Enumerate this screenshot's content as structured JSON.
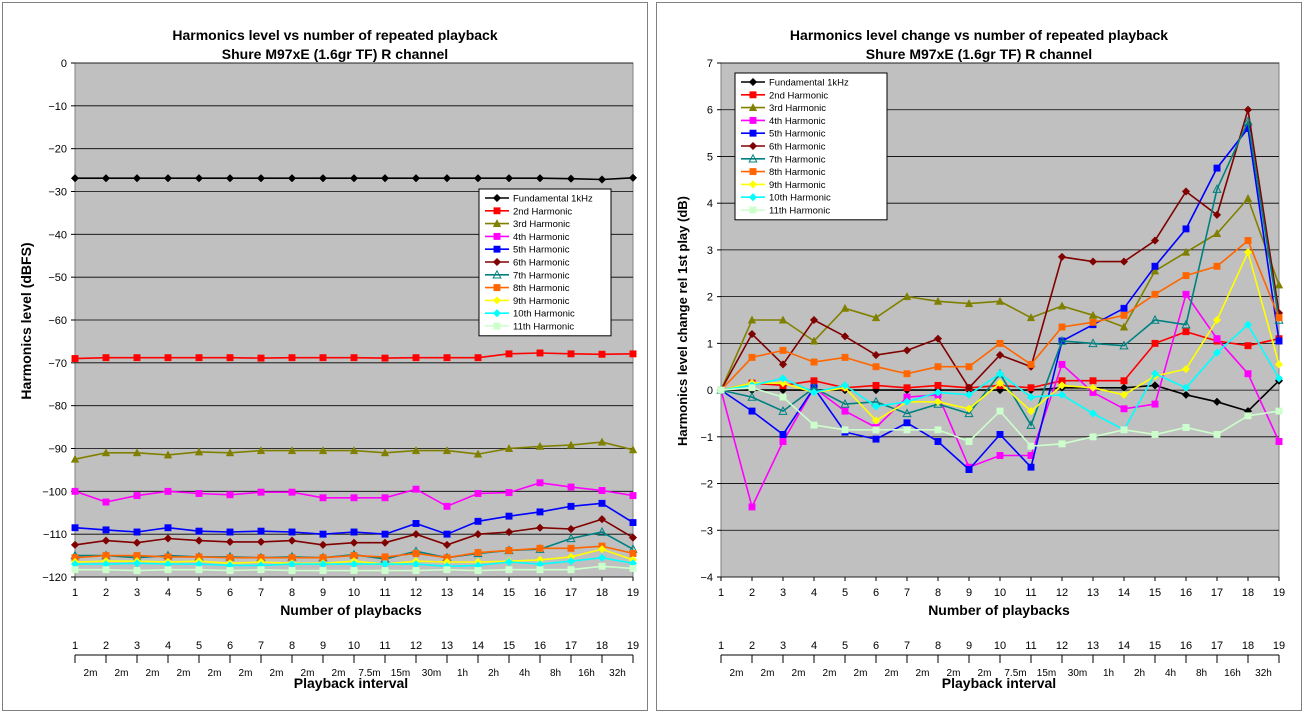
{
  "legend_labels": [
    "Fundamental 1kHz",
    "2nd Harmonic",
    "3rd Harmonic",
    "4th Harmonic",
    "5th Harmonic",
    "6th Harmonic",
    "7th Harmonic",
    "8th Harmonic",
    "9th Harmonic",
    "10th Harmonic",
    "11th Harmonic"
  ],
  "series_colors": [
    "#000000",
    "#ff0000",
    "#808000",
    "#ff00ff",
    "#0000ff",
    "#800000",
    "#008080",
    "#ff6600",
    "#ffff00",
    "#00ffff",
    "#ccffcc"
  ],
  "series_markers": [
    "diamond",
    "square",
    "triangle",
    "square",
    "square",
    "diamond",
    "triangle-open",
    "square",
    "diamond",
    "diamond",
    "square"
  ],
  "secondary_axis": {
    "title": "Playback interval",
    "labels": [
      "2m",
      "2m",
      "2m",
      "2m",
      "2m",
      "2m",
      "2m",
      "2m",
      "2m",
      "7.5m",
      "15m",
      "30m",
      "1h",
      "2h",
      "4h",
      "8h",
      "16h",
      "32h"
    ]
  },
  "chart_data": [
    {
      "type": "line",
      "title": "Harmonics level vs number of repeated playback",
      "subtitle": "Shure M97xE (1.6gr TF) R channel",
      "xlabel": "Number of  playbacks",
      "ylabel": "Harmonics level (dBFS)",
      "ylim": [
        -120,
        0
      ],
      "yticks": [
        0,
        -10,
        -20,
        -30,
        -40,
        -50,
        -60,
        -70,
        -80,
        -90,
        -100,
        -110,
        -120
      ],
      "x": [
        1,
        2,
        3,
        4,
        5,
        6,
        7,
        8,
        9,
        10,
        11,
        12,
        13,
        14,
        15,
        16,
        17,
        18,
        19
      ],
      "grid": true,
      "legend_position": "right",
      "series": [
        {
          "name": "Fundamental 1kHz",
          "values": [
            -26.9,
            -26.9,
            -26.9,
            -26.9,
            -26.9,
            -26.9,
            -26.9,
            -26.9,
            -26.9,
            -26.9,
            -26.9,
            -26.9,
            -26.9,
            -26.9,
            -26.9,
            -26.9,
            -27.0,
            -27.2,
            -26.8
          ]
        },
        {
          "name": "2nd Harmonic",
          "values": [
            -69.0,
            -68.8,
            -68.8,
            -68.8,
            -68.8,
            -68.8,
            -68.9,
            -68.8,
            -68.8,
            -68.8,
            -68.9,
            -68.8,
            -68.8,
            -68.8,
            -67.9,
            -67.7,
            -67.9,
            -68.0,
            -67.9
          ]
        },
        {
          "name": "3rd Harmonic",
          "values": [
            -92.5,
            -91.0,
            -91.0,
            -91.5,
            -90.8,
            -91.0,
            -90.5,
            -90.5,
            -90.5,
            -90.5,
            -91.0,
            -90.5,
            -90.5,
            -91.3,
            -90.0,
            -89.5,
            -89.2,
            -88.5,
            -90.3
          ]
        },
        {
          "name": "4th Harmonic",
          "values": [
            -100.0,
            -102.5,
            -101.0,
            -100.0,
            -100.5,
            -100.8,
            -100.2,
            -100.2,
            -101.5,
            -101.5,
            -101.5,
            -99.5,
            -103.5,
            -100.5,
            -100.3,
            -98.0,
            -99.0,
            -99.8,
            -101.0
          ]
        },
        {
          "name": "5th Harmonic",
          "values": [
            -108.5,
            -109.0,
            -109.5,
            -108.5,
            -109.3,
            -109.5,
            -109.3,
            -109.5,
            -110.0,
            -109.5,
            -110.0,
            -107.5,
            -110.0,
            -107.0,
            -105.8,
            -104.8,
            -103.5,
            -102.8,
            -107.3
          ]
        },
        {
          "name": "6th Harmonic",
          "values": [
            -112.5,
            -111.5,
            -112.0,
            -111.0,
            -111.5,
            -111.8,
            -111.8,
            -111.5,
            -112.5,
            -112.0,
            -112.0,
            -110.0,
            -112.5,
            -110.0,
            -109.5,
            -108.5,
            -108.8,
            -106.5,
            -110.8
          ]
        },
        {
          "name": "7th Harmonic",
          "values": [
            -115.0,
            -115.0,
            -115.5,
            -115.0,
            -115.3,
            -115.3,
            -115.5,
            -115.3,
            -115.5,
            -114.8,
            -115.8,
            -114.0,
            -115.5,
            -114.5,
            -113.8,
            -113.5,
            -111.0,
            -109.5,
            -113.5
          ]
        },
        {
          "name": "8th Harmonic",
          "values": [
            -115.5,
            -115.0,
            -115.0,
            -115.3,
            -115.3,
            -115.5,
            -115.5,
            -115.5,
            -115.5,
            -115.0,
            -115.3,
            -114.5,
            -115.5,
            -114.3,
            -113.8,
            -113.3,
            -113.3,
            -112.8,
            -114.5
          ]
        },
        {
          "name": "9th Harmonic",
          "values": [
            -116.5,
            -116.3,
            -116.3,
            -116.5,
            -116.3,
            -116.8,
            -116.5,
            -116.8,
            -116.8,
            -116.3,
            -117.0,
            -116.3,
            -116.5,
            -116.5,
            -116.3,
            -116.0,
            -115.3,
            -113.5,
            -116.0
          ]
        },
        {
          "name": "10th Harmonic",
          "values": [
            -117.0,
            -117.0,
            -116.8,
            -117.0,
            -117.0,
            -117.3,
            -117.3,
            -117.0,
            -117.0,
            -117.0,
            -117.0,
            -117.0,
            -117.5,
            -117.3,
            -116.5,
            -117.0,
            -116.3,
            -115.5,
            -116.8
          ]
        },
        {
          "name": "11th Harmonic",
          "values": [
            -118.3,
            -118.3,
            -118.5,
            -118.3,
            -118.3,
            -118.5,
            -118.3,
            -118.5,
            -118.5,
            -118.5,
            -118.5,
            -118.5,
            -118.3,
            -118.5,
            -118.3,
            -118.3,
            -118.3,
            -117.5,
            -118.0
          ]
        }
      ]
    },
    {
      "type": "line",
      "title": "Harmonics level change vs number of repeated playback",
      "subtitle": "Shure M97xE (1.6gr TF) R channel",
      "xlabel": "Number of playbacks",
      "ylabel": "Harmonics level change rel 1st play (dB)",
      "ylim": [
        -4,
        7
      ],
      "yticks": [
        7,
        6,
        5,
        4,
        3,
        2,
        1,
        0,
        -1,
        -2,
        -3,
        -4
      ],
      "x": [
        1,
        2,
        3,
        4,
        5,
        6,
        7,
        8,
        9,
        10,
        11,
        12,
        13,
        14,
        15,
        16,
        17,
        18,
        19
      ],
      "grid": true,
      "legend_position": "top-left",
      "series": [
        {
          "name": "Fundamental 1kHz",
          "values": [
            0,
            0,
            0,
            0,
            0,
            0,
            0,
            0,
            0,
            0,
            0,
            0.05,
            0.05,
            0.05,
            0.1,
            -0.1,
            -0.25,
            -0.45,
            0.2
          ]
        },
        {
          "name": "2nd Harmonic",
          "values": [
            0,
            0.15,
            0.1,
            0.2,
            0.05,
            0.1,
            0.05,
            0.1,
            0.05,
            0.1,
            0.05,
            0.2,
            0.2,
            0.2,
            1.0,
            1.25,
            1.05,
            0.95,
            1.1
          ]
        },
        {
          "name": "3rd Harmonic",
          "values": [
            0,
            1.5,
            1.5,
            1.05,
            1.75,
            1.55,
            2.0,
            1.9,
            1.85,
            1.9,
            1.55,
            1.8,
            1.6,
            1.35,
            2.55,
            2.95,
            3.35,
            4.1,
            2.25
          ]
        },
        {
          "name": "4th Harmonic",
          "values": [
            0,
            -2.5,
            -1.1,
            0.05,
            -0.45,
            -0.8,
            -0.15,
            -0.1,
            -1.65,
            -1.4,
            -1.4,
            0.55,
            -0.05,
            -0.4,
            -0.3,
            2.05,
            1.1,
            0.35,
            -1.1
          ]
        },
        {
          "name": "5th Harmonic",
          "values": [
            0,
            -0.45,
            -0.95,
            0.05,
            -0.9,
            -1.05,
            -0.7,
            -1.1,
            -1.7,
            -0.95,
            -1.65,
            1.05,
            1.4,
            1.75,
            2.65,
            3.45,
            4.75,
            5.6,
            1.05
          ]
        },
        {
          "name": "6th Harmonic",
          "values": [
            0,
            1.2,
            0.55,
            1.5,
            1.15,
            0.75,
            0.85,
            1.1,
            0.05,
            0.75,
            0.5,
            2.85,
            2.75,
            2.75,
            3.2,
            4.25,
            3.75,
            6.0,
            1.65
          ]
        },
        {
          "name": "7th Harmonic",
          "values": [
            0,
            -0.15,
            -0.45,
            0.05,
            -0.3,
            -0.25,
            -0.5,
            -0.3,
            -0.5,
            0.35,
            -0.75,
            1.05,
            1.0,
            0.95,
            1.5,
            1.4,
            4.3,
            5.75,
            1.5
          ]
        },
        {
          "name": "8th Harmonic",
          "values": [
            0,
            0.7,
            0.85,
            0.6,
            0.7,
            0.5,
            0.35,
            0.5,
            0.5,
            1.0,
            0.55,
            1.35,
            1.45,
            1.6,
            2.05,
            2.45,
            2.65,
            3.2,
            1.55
          ]
        },
        {
          "name": "9th Harmonic",
          "values": [
            0,
            0.15,
            0.15,
            -0.05,
            0.05,
            -0.65,
            -0.25,
            -0.25,
            -0.4,
            0.15,
            -0.45,
            0.1,
            0.05,
            -0.1,
            0.3,
            0.45,
            1.5,
            2.95,
            0.55
          ]
        },
        {
          "name": "10th Harmonic",
          "values": [
            0,
            0.1,
            0.25,
            -0.05,
            0.1,
            -0.35,
            -0.25,
            -0.05,
            -0.1,
            0.35,
            -0.15,
            -0.1,
            -0.5,
            -0.85,
            0.35,
            0.05,
            0.8,
            1.4,
            0.25
          ]
        },
        {
          "name": "11th Harmonic",
          "values": [
            0,
            0.05,
            -0.15,
            -0.75,
            -0.85,
            -0.85,
            -0.85,
            -0.85,
            -1.1,
            -0.45,
            -1.2,
            -1.15,
            -1.0,
            -0.85,
            -0.95,
            -0.8,
            -0.95,
            -0.55,
            -0.45
          ]
        }
      ]
    }
  ]
}
